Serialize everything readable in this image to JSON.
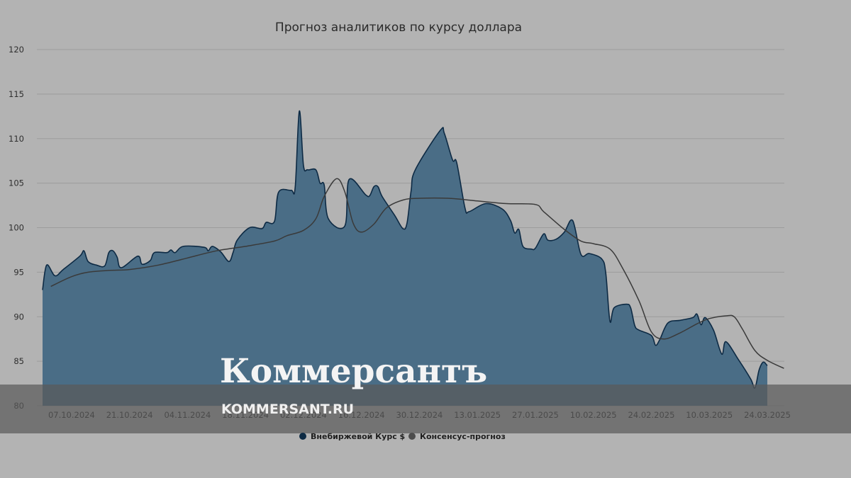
{
  "colors": {
    "background": "#b3b3b3",
    "rate_fill": "#4a6d86",
    "rate_line": "#0d2a44",
    "consensus_line": "#3a3a3a",
    "grid": "#9c9c9c",
    "watermark_band": "#5a5a5a"
  },
  "watermark": {
    "brand": "Коммерсантъ",
    "url": "KOMMERSANT.RU"
  },
  "chart_data": {
    "type": "area",
    "title": "Прогноз аналитиков по курсу доллара",
    "xlabel": "",
    "ylabel": "",
    "ylim": [
      80,
      120
    ],
    "yticks": [
      "120",
      "115",
      "110",
      "105",
      "100",
      "95",
      "90",
      "85",
      "80"
    ],
    "xticks": [
      "07.10.2024",
      "21.10.2024",
      "04.11.2024",
      "18.11.2024",
      "02.12.2024",
      "16.12.2024",
      "30.12.2024",
      "13.01.2025",
      "27.01.2025",
      "10.02.2025",
      "24.02.2025",
      "10.03.2025",
      "24.03.2025"
    ],
    "grid": true,
    "legend_position": "bottom",
    "series": [
      {
        "name": "Внебиржевой Курс $",
        "type": "area",
        "points": [
          [
            "30.09.2024",
            93.0
          ],
          [
            "01.10.2024",
            95.8
          ],
          [
            "03.10.2024",
            94.6
          ],
          [
            "05.10.2024",
            95.3
          ],
          [
            "09.10.2024",
            96.8
          ],
          [
            "10.10.2024",
            97.4
          ],
          [
            "11.10.2024",
            96.2
          ],
          [
            "13.10.2024",
            95.8
          ],
          [
            "15.10.2024",
            95.7
          ],
          [
            "16.10.2024",
            97.2
          ],
          [
            "17.10.2024",
            97.4
          ],
          [
            "18.10.2024",
            96.7
          ],
          [
            "19.10.2024",
            95.5
          ],
          [
            "23.10.2024",
            96.8
          ],
          [
            "24.10.2024",
            95.9
          ],
          [
            "26.10.2024",
            96.3
          ],
          [
            "27.10.2024",
            97.2
          ],
          [
            "30.10.2024",
            97.2
          ],
          [
            "31.10.2024",
            97.5
          ],
          [
            "01.11.2024",
            97.2
          ],
          [
            "03.11.2024",
            97.9
          ],
          [
            "08.11.2024",
            97.8
          ],
          [
            "09.11.2024",
            97.4
          ],
          [
            "10.11.2024",
            97.9
          ],
          [
            "12.11.2024",
            97.3
          ],
          [
            "14.11.2024",
            96.2
          ],
          [
            "15.11.2024",
            97.2
          ],
          [
            "16.11.2024",
            98.6
          ],
          [
            "19.11.2024",
            100.0
          ],
          [
            "22.11.2024",
            99.9
          ],
          [
            "23.11.2024",
            100.6
          ],
          [
            "25.11.2024",
            100.7
          ],
          [
            "26.11.2024",
            104.0
          ],
          [
            "29.11.2024",
            104.2
          ],
          [
            "30.11.2024",
            104.5
          ],
          [
            "01.12.2024",
            113.1
          ],
          [
            "02.12.2024",
            107.0
          ],
          [
            "03.12.2024",
            106.5
          ],
          [
            "05.12.2024",
            106.5
          ],
          [
            "06.12.2024",
            105.0
          ],
          [
            "07.12.2024",
            104.8
          ],
          [
            "08.12.2024",
            101.0
          ],
          [
            "12.12.2024",
            100.2
          ],
          [
            "13.12.2024",
            105.4
          ],
          [
            "17.12.2024",
            103.7
          ],
          [
            "18.12.2024",
            103.6
          ],
          [
            "19.12.2024",
            104.6
          ],
          [
            "20.12.2024",
            104.6
          ],
          [
            "21.12.2024",
            103.5
          ],
          [
            "24.12.2024",
            101.4
          ],
          [
            "26.12.2024",
            99.9
          ],
          [
            "27.12.2024",
            100.5
          ],
          [
            "28.12.2024",
            104.2
          ],
          [
            "29.12.2024",
            106.5
          ],
          [
            "04.01.2025",
            110.9
          ],
          [
            "05.01.2025",
            110.6
          ],
          [
            "07.01.2025",
            107.6
          ],
          [
            "08.01.2025",
            107.3
          ],
          [
            "10.01.2025",
            102.2
          ],
          [
            "11.01.2025",
            101.8
          ],
          [
            "15.01.2025",
            102.7
          ],
          [
            "19.01.2025",
            102.1
          ],
          [
            "21.01.2025",
            100.8
          ],
          [
            "22.01.2025",
            99.4
          ],
          [
            "23.01.2025",
            99.8
          ],
          [
            "24.01.2025",
            97.9
          ],
          [
            "26.01.2025",
            97.6
          ],
          [
            "27.01.2025",
            97.7
          ],
          [
            "29.01.2025",
            99.3
          ],
          [
            "30.01.2025",
            98.6
          ],
          [
            "01.02.2025",
            98.7
          ],
          [
            "03.02.2025",
            99.5
          ],
          [
            "05.02.2025",
            100.8
          ],
          [
            "07.02.2025",
            97.0
          ],
          [
            "09.02.2025",
            97.1
          ],
          [
            "12.02.2025",
            96.5
          ],
          [
            "13.02.2025",
            94.9
          ],
          [
            "14.02.2025",
            89.5
          ],
          [
            "15.02.2025",
            91.0
          ],
          [
            "18.02.2025",
            91.4
          ],
          [
            "19.02.2025",
            91.0
          ],
          [
            "20.02.2025",
            89.0
          ],
          [
            "21.02.2025",
            88.5
          ],
          [
            "24.02.2025",
            87.9
          ],
          [
            "25.02.2025",
            86.8
          ],
          [
            "26.02.2025",
            87.4
          ],
          [
            "28.02.2025",
            89.3
          ],
          [
            "03.03.2025",
            89.6
          ],
          [
            "06.03.2025",
            89.9
          ],
          [
            "07.03.2025",
            90.3
          ],
          [
            "08.03.2025",
            89.1
          ],
          [
            "09.03.2025",
            89.9
          ],
          [
            "11.03.2025",
            88.5
          ],
          [
            "13.03.2025",
            85.8
          ],
          [
            "14.03.2025",
            87.2
          ],
          [
            "17.03.2025",
            85.2
          ],
          [
            "20.03.2025",
            83.0
          ],
          [
            "21.03.2025",
            82.0
          ],
          [
            "22.03.2025",
            84.0
          ],
          [
            "23.03.2025",
            84.9
          ],
          [
            "24.03.2025",
            84.5
          ]
        ]
      },
      {
        "name": "Консенсус-прогноз",
        "type": "line",
        "points": [
          [
            "02.10.2024",
            93.4
          ],
          [
            "07.10.2024",
            94.5
          ],
          [
            "11.10.2024",
            95.0
          ],
          [
            "16.10.2024",
            95.2
          ],
          [
            "21.10.2024",
            95.3
          ],
          [
            "28.10.2024",
            95.8
          ],
          [
            "04.11.2024",
            96.6
          ],
          [
            "11.11.2024",
            97.4
          ],
          [
            "18.11.2024",
            97.9
          ],
          [
            "25.11.2024",
            98.5
          ],
          [
            "28.11.2024",
            99.1
          ],
          [
            "02.12.2024",
            99.7
          ],
          [
            "05.12.2024",
            101.0
          ],
          [
            "07.12.2024",
            103.5
          ],
          [
            "10.12.2024",
            105.5
          ],
          [
            "12.12.2024",
            104.0
          ],
          [
            "14.12.2024",
            100.5
          ],
          [
            "16.12.2024",
            99.5
          ],
          [
            "19.12.2024",
            100.4
          ],
          [
            "22.12.2024",
            102.2
          ],
          [
            "26.12.2024",
            103.1
          ],
          [
            "30.12.2024",
            103.3
          ],
          [
            "06.01.2025",
            103.3
          ],
          [
            "13.01.2025",
            103.0
          ],
          [
            "20.01.2025",
            102.7
          ],
          [
            "27.01.2025",
            102.6
          ],
          [
            "29.01.2025",
            101.8
          ],
          [
            "03.02.2025",
            99.8
          ],
          [
            "07.02.2025",
            98.5
          ],
          [
            "10.02.2025",
            98.2
          ],
          [
            "14.02.2025",
            97.6
          ],
          [
            "17.02.2025",
            95.5
          ],
          [
            "21.02.2025",
            91.8
          ],
          [
            "24.02.2025",
            88.3
          ],
          [
            "27.02.2025",
            87.5
          ],
          [
            "03.03.2025",
            88.2
          ],
          [
            "07.03.2025",
            89.2
          ],
          [
            "10.03.2025",
            89.8
          ],
          [
            "14.03.2025",
            90.1
          ],
          [
            "16.03.2025",
            90.0
          ],
          [
            "18.03.2025",
            88.6
          ],
          [
            "21.03.2025",
            86.2
          ],
          [
            "24.03.2025",
            85.1
          ],
          [
            "28.03.2025",
            84.2
          ]
        ]
      }
    ]
  }
}
